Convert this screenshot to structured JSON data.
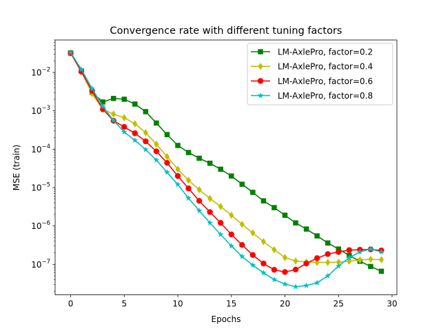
{
  "chart_data": {
    "type": "line",
    "title": "Convergence rate with different tuning factors",
    "xlabel": "Epochs",
    "ylabel": "MSE (train)",
    "yscale": "log",
    "xlim": [
      -1.45,
      30.45
    ],
    "ylim": [
      1.6e-08,
      0.07
    ],
    "xticks": [
      0,
      5,
      10,
      15,
      20,
      25,
      30
    ],
    "yticks": [
      1e-07,
      1e-06,
      1e-05,
      0.0001,
      0.001,
      0.01
    ],
    "ytick_labels": [
      {
        "base": "10",
        "exp": "−7"
      },
      {
        "base": "10",
        "exp": "−6"
      },
      {
        "base": "10",
        "exp": "−5"
      },
      {
        "base": "10",
        "exp": "−4"
      },
      {
        "base": "10",
        "exp": "−3"
      },
      {
        "base": "10",
        "exp": "−2"
      }
    ],
    "grid": false,
    "legend_position": "top-right",
    "x": [
      0,
      1,
      2,
      3,
      4,
      5,
      6,
      7,
      8,
      9,
      10,
      11,
      12,
      13,
      14,
      15,
      16,
      17,
      18,
      19,
      20,
      21,
      22,
      23,
      24,
      25,
      26,
      27,
      28,
      29
    ],
    "series": [
      {
        "name": "LM-AxlePro, factor=0.2",
        "color": "#008000",
        "marker": "square",
        "values": [
          0.032,
          0.011,
          0.003,
          0.0017,
          0.0021,
          0.002,
          0.0015,
          0.00095,
          0.00048,
          0.00024,
          0.000125,
          8.2e-05,
          5.8e-05,
          4.3e-05,
          3e-05,
          2e-05,
          1.22e-05,
          7.5e-06,
          4.5e-06,
          3e-06,
          1.9e-06,
          1.2e-06,
          8.3e-07,
          5.5e-07,
          3.6e-07,
          2.5e-07,
          1.7e-07,
          1.2e-07,
          8.8e-08,
          6.6e-08
        ]
      },
      {
        "name": "LM-AxlePro, factor=0.4",
        "color": "#bfbf00",
        "marker": "thin_diamond",
        "values": [
          0.032,
          0.0105,
          0.0028,
          0.0011,
          0.00082,
          0.00066,
          0.00046,
          0.00027,
          0.000135,
          6.4e-05,
          3e-05,
          1.55e-05,
          8.8e-06,
          5.2e-06,
          3.2e-06,
          1.9e-06,
          1.1e-06,
          6.6e-07,
          3.9e-07,
          2.4e-07,
          1.5e-07,
          1.22e-07,
          1.15e-07,
          1.12e-07,
          1.12e-07,
          1.14e-07,
          1.2e-07,
          1.3e-07,
          1.35e-07,
          1.32e-07
        ]
      },
      {
        "name": "LM-AxlePro, factor=0.6",
        "color": "#ff0000",
        "marker": "circle",
        "values": [
          0.032,
          0.0105,
          0.0033,
          0.0011,
          0.00055,
          0.00038,
          0.00026,
          0.00016,
          8.8e-05,
          4.4e-05,
          2e-05,
          9.5e-06,
          4.5e-06,
          2.3e-06,
          1.2e-06,
          6e-07,
          3.2e-07,
          1.75e-07,
          1.05e-07,
          7.2e-08,
          6.3e-08,
          7.3e-08,
          1.05e-07,
          1.45e-07,
          1.85e-07,
          2.1e-07,
          2.35e-07,
          2.4e-07,
          2.45e-07,
          2.3e-07
        ]
      },
      {
        "name": "LM-AxlePro, factor=0.8",
        "color": "#00bfbf",
        "marker": "star",
        "values": [
          0.033,
          0.012,
          0.0038,
          0.0013,
          0.00056,
          0.00028,
          0.00017,
          9.75e-05,
          5.2e-05,
          2.5e-05,
          1.2e-05,
          5.3e-06,
          2.5e-06,
          1.2e-06,
          6e-07,
          3e-07,
          1.6e-07,
          9.5e-08,
          6e-08,
          4e-08,
          3.05e-08,
          2.6e-08,
          2.8e-08,
          3.3e-08,
          5e-08,
          9e-08,
          1.5e-07,
          2.1e-07,
          2.5e-07,
          2.1e-07
        ]
      }
    ]
  }
}
